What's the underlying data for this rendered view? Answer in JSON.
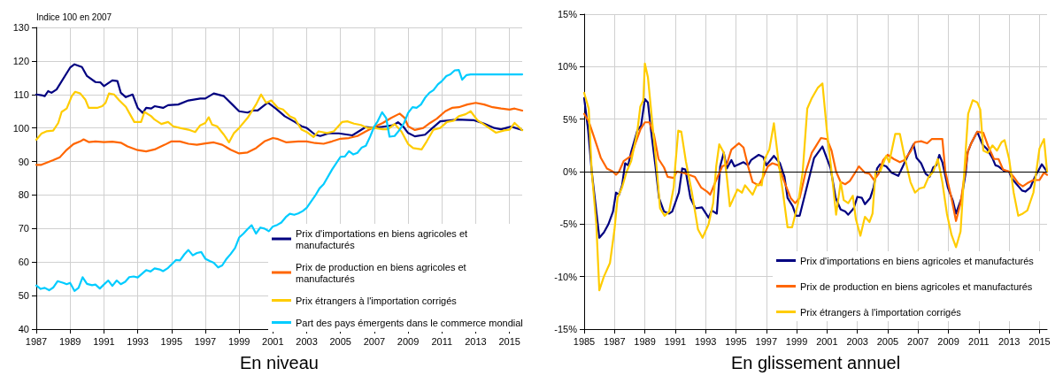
{
  "chart_data": [
    {
      "type": "line",
      "xlabel": "En niveau",
      "ylabel": "Indice 100 en 2007",
      "xlim": [
        1987,
        2015.75
      ],
      "xticks": [
        1987,
        1989,
        1991,
        1993,
        1995,
        1997,
        1999,
        2001,
        2003,
        2005,
        2007,
        2009,
        2011,
        2013,
        2015
      ],
      "ylim": [
        40,
        130
      ],
      "yticks": [
        40,
        50,
        60,
        70,
        80,
        90,
        100,
        110,
        120,
        130
      ],
      "grid": true,
      "legend": "bottom right",
      "marker": "none",
      "line_style": "solid",
      "series": [
        {
          "name": "Prix d'importations en biens agricoles et manufacturés",
          "color": "#000080",
          "x": [
            1987,
            1987.3,
            1987.5,
            1987.7,
            1987.9,
            1988.2,
            1989,
            1989.26,
            1989.7,
            1990,
            1990.5,
            1990.8,
            1991,
            1991.5,
            1991.8,
            1992,
            1992.3,
            1992.7,
            1993,
            1993.3,
            1993.5,
            1993.8,
            1994,
            1994.5,
            1994.8,
            1995.4,
            1996,
            1996.7,
            1997,
            1997.5,
            1998.1,
            1998.6,
            1999,
            1999.5,
            1999.8,
            2000.1,
            2000.7,
            2001.2,
            2001.7,
            2002.3,
            2002.7,
            2003,
            2003.5,
            2003.8,
            2004.3,
            2004.9,
            2005.7,
            2006.5,
            2007,
            2007.7,
            2008.1,
            2008.4,
            2008.7,
            2009,
            2009.4,
            2010,
            2010.4,
            2010.9,
            2011.9,
            2012.9,
            2013.5,
            2014.1,
            2014.5,
            2015.1,
            2015.75
          ],
          "values": [
            110,
            109.8,
            109.5,
            111,
            110.5,
            111.5,
            118,
            119,
            118.2,
            115.5,
            113.7,
            113.6,
            112.5,
            114.2,
            114,
            110.5,
            109.2,
            110,
            106,
            104.5,
            106,
            105.8,
            106.5,
            106,
            106.8,
            107,
            108.2,
            108.8,
            108.8,
            110.3,
            109.5,
            107,
            105,
            104.6,
            105.2,
            105.2,
            107.6,
            105.7,
            103.5,
            101.8,
            100.5,
            100,
            98,
            97.6,
            98.4,
            98.4,
            97.8,
            100.3,
            100,
            100.5,
            100.8,
            101.7,
            100.5,
            98.5,
            97.5,
            98,
            99.8,
            102,
            102.5,
            102.3,
            101.3,
            100,
            99.6,
            100.4,
            99.4
          ]
        },
        {
          "name": "Prix de production en biens agricoles et manufacturés",
          "color": "#ff6600",
          "x": [
            1987,
            1987.3,
            1987.6,
            1988,
            1988.4,
            1988.8,
            1989.2,
            1989.6,
            1989.8,
            1990.1,
            1990.5,
            1991,
            1991.5,
            1992,
            1992.4,
            1993,
            1993.5,
            1994,
            1994.6,
            1995,
            1995.5,
            1996,
            1996.5,
            1997,
            1997.5,
            1998,
            1998.5,
            1999,
            1999.5,
            2000,
            2000.5,
            2001,
            2001.3,
            2001.8,
            2002.5,
            2003,
            2003.5,
            2004,
            2004.5,
            2005,
            2005.5,
            2006,
            2006.5,
            2007,
            2007.5,
            2008,
            2008.5,
            2008.8,
            2009,
            2009.4,
            2009.9,
            2010.3,
            2010.7,
            2011.2,
            2011.6,
            2012,
            2012.5,
            2013,
            2013.5,
            2014,
            2014.5,
            2015,
            2015.3,
            2015.75
          ],
          "values": [
            89,
            89,
            89.6,
            90.4,
            91.3,
            93.5,
            95.2,
            96,
            96.6,
            95.8,
            96,
            95.8,
            95.9,
            95.6,
            94.5,
            93.4,
            93,
            93.6,
            95,
            96,
            96,
            95.3,
            95,
            95.4,
            95.7,
            95,
            93.5,
            92.4,
            92.7,
            94,
            96,
            97,
            96.7,
            95.7,
            96,
            96,
            95.5,
            95.3,
            96,
            96.8,
            97,
            97.6,
            99,
            100.3,
            101.5,
            103,
            104.3,
            103,
            100.5,
            99.4,
            100,
            101.5,
            102.8,
            105,
            106,
            106.2,
            107,
            107.5,
            107,
            106.2,
            105.8,
            105.5,
            105.8,
            105.2
          ]
        },
        {
          "name": "Prix étrangers à l'importation corrigés",
          "color": "#ffcc00",
          "x": [
            1987,
            1987.3,
            1987.6,
            1988,
            1988.3,
            1988.5,
            1988.8,
            1989.1,
            1989.3,
            1989.6,
            1989.9,
            1990.1,
            1990.6,
            1990.9,
            1991.1,
            1991.3,
            1991.6,
            1991.9,
            1992.3,
            1992.5,
            1992.8,
            1993.2,
            1993.4,
            1993.8,
            1994,
            1994.4,
            1994.8,
            1995.1,
            1995.5,
            1996,
            1996.4,
            1996.7,
            1997,
            1997.2,
            1997.4,
            1997.7,
            1998.1,
            1998.4,
            1998.7,
            1999,
            1999.5,
            2000,
            2000.3,
            2000.6,
            2000.9,
            2001.3,
            2001.6,
            2002,
            2002.3,
            2002.7,
            2003,
            2003.4,
            2003.7,
            2004.2,
            2004.6,
            2005.1,
            2005.4,
            2005.8,
            2006.2,
            2006.6,
            2007,
            2007.5,
            2007.8,
            2008.2,
            2008.6,
            2009,
            2009.3,
            2009.8,
            2010.1,
            2010.5,
            2010.9,
            2011.3,
            2011.7,
            2012,
            2012.4,
            2012.7,
            2013.1,
            2013.5,
            2013.9,
            2014.2,
            2014.7,
            2015,
            2015.3,
            2015.75
          ],
          "values": [
            96.5,
            98.3,
            99,
            99.2,
            101.5,
            104.8,
            105.8,
            109.5,
            110.8,
            110.3,
            108.5,
            106,
            106,
            106.5,
            107.5,
            110.3,
            110,
            108.3,
            106.3,
            104.5,
            101.8,
            101.8,
            104.8,
            103.5,
            102.5,
            101.2,
            101.8,
            100.5,
            100,
            99.5,
            98.8,
            100.8,
            101.5,
            103.2,
            101,
            100.5,
            98,
            95.7,
            98.5,
            100,
            103,
            107,
            110,
            107.5,
            108.2,
            106,
            105.5,
            103.5,
            102.8,
            99.5,
            98.8,
            97.3,
            99,
            98.5,
            99,
            101.8,
            102,
            101.3,
            100.9,
            100,
            100,
            99.6,
            99.6,
            101.2,
            99,
            95.2,
            94,
            93.6,
            96,
            99.5,
            100,
            101.8,
            102.2,
            103.5,
            104.1,
            105,
            102.3,
            101,
            99.6,
            98.6,
            99.3,
            99.5,
            101.5,
            99.3
          ]
        },
        {
          "name": "Part des pays émergents dans le commerce mondial",
          "color": "#00ccff",
          "x": [
            1987,
            1987.26,
            1987.5,
            1987.76,
            1988,
            1988.26,
            1988.6,
            1988.8,
            1989,
            1989.26,
            1989.5,
            1989.74,
            1990,
            1990.3,
            1990.5,
            1990.76,
            1991,
            1991.26,
            1991.5,
            1991.76,
            1992,
            1992.26,
            1992.5,
            1992.76,
            1993,
            1993.5,
            1993.76,
            1994,
            1994.3,
            1994.5,
            1994.76,
            1995.26,
            1995.5,
            1995.76,
            1996,
            1996.26,
            1996.5,
            1996.76,
            1997,
            1997.26,
            1997.5,
            1997.76,
            1998,
            1998.26,
            1998.5,
            1998.76,
            1999,
            1999.26,
            1999.5,
            1999.74,
            2000,
            2000.26,
            2000.5,
            2000.76,
            2001,
            2001.26,
            2001.5,
            2001.76,
            2002,
            2002.26,
            2002.5,
            2002.76,
            2003,
            2003.5,
            2003.76,
            2004,
            2004.5,
            2005,
            2005.26,
            2005.5,
            2005.76,
            2006,
            2006.26,
            2006.5,
            2006.76,
            2007,
            2007.2,
            2007.46,
            2007.7,
            2007.9,
            2008.2,
            2008.5,
            2008.76,
            2009,
            2009.26,
            2009.5,
            2009.76,
            2010,
            2010.26,
            2010.5,
            2010.76,
            2011,
            2011.26,
            2011.5,
            2011.76,
            2012,
            2012.2,
            2012.46,
            2012.7,
            2015.75
          ],
          "values": [
            53,
            52,
            52.3,
            51.6,
            52.4,
            54.3,
            53.8,
            53.4,
            53.8,
            51.4,
            52.3,
            55.5,
            53.5,
            53.1,
            53.3,
            52.1,
            53.3,
            54.5,
            52.9,
            54.5,
            53.4,
            54.1,
            55.5,
            55.7,
            55.4,
            57.6,
            57.2,
            58.1,
            57.8,
            57.3,
            58.1,
            60.6,
            60.5,
            62.3,
            63.6,
            62,
            62.7,
            63,
            61,
            60.3,
            59.8,
            58.4,
            59,
            61,
            62.4,
            64.2,
            67.3,
            68.5,
            69.8,
            71,
            68.5,
            70.3,
            70,
            69.2,
            70.6,
            71.1,
            71.8,
            73.4,
            74.4,
            74.1,
            74.5,
            75.2,
            76.2,
            79.8,
            82,
            83.2,
            87.6,
            91.4,
            91.5,
            93.1,
            92.1,
            92.6,
            94.2,
            94.7,
            97.5,
            100.5,
            102,
            104.7,
            103,
            97.4,
            97.6,
            99.5,
            101.5,
            104.5,
            106.2,
            106,
            107,
            109,
            110.5,
            111.3,
            113,
            114,
            115.5,
            116,
            117.2,
            117.3,
            114.4,
            115.8,
            116,
            116
          ]
        }
      ]
    },
    {
      "type": "line",
      "xlabel": "En glissement annuel",
      "xlim": [
        1985,
        2015.5
      ],
      "xticks": [
        1985,
        1987,
        1989,
        1991,
        1993,
        1995,
        1997,
        1999,
        2001,
        2003,
        2005,
        2007,
        2009,
        2011,
        2013,
        2015
      ],
      "ylim": [
        -15,
        15
      ],
      "yticks": [
        {
          "value": -15,
          "label": "-15%"
        },
        {
          "value": -10,
          "label": "-10%"
        },
        {
          "value": -5,
          "label": "-5%"
        },
        {
          "value": 0,
          "label": "0%"
        },
        {
          "value": 5,
          "label": "5%"
        },
        {
          "value": 10,
          "label": "10%"
        },
        {
          "value": 15,
          "label": "15%"
        }
      ],
      "grid": true,
      "legend": "bottom right",
      "marker": "none",
      "line_style": "solid",
      "ref_lines": [
        {
          "axis": "y",
          "value": 0,
          "color": "#000000"
        }
      ],
      "series": [
        {
          "name": "Prix d'importations en biens agricoles et manufacturés",
          "color": "#000080",
          "x": [
            1985,
            1985.26,
            1985.5,
            1986,
            1986.3,
            1986.6,
            1986.9,
            1987.1,
            1987.3,
            1987.5,
            1987.7,
            1987.9,
            1988.1,
            1988.5,
            1988.75,
            1989,
            1989.2,
            1989.4,
            1989.7,
            1989.93,
            1990.26,
            1990.6,
            1990.8,
            1991.24,
            1991.46,
            1991.67,
            1992,
            1992.33,
            1992.76,
            1993.2,
            1993.4,
            1993.74,
            1993.96,
            1994.2,
            1994.4,
            1994.7,
            1994.9,
            1995.5,
            1995.8,
            1996,
            1996.5,
            1996.8,
            1997,
            1997.5,
            1997.9,
            1998.2,
            1998.4,
            1998.74,
            1998.96,
            1999.2,
            1999.7,
            2000.15,
            2000.7,
            2001.24,
            2001.57,
            2001.9,
            2002.2,
            2002.4,
            2002.76,
            2003,
            2003.3,
            2003.5,
            2003.85,
            2004.07,
            2004.3,
            2004.5,
            2004.9,
            2005.26,
            2005.7,
            2006,
            2006.35,
            2006.7,
            2006.9,
            2007.2,
            2007.5,
            2007.76,
            2008,
            2008.2,
            2008.4,
            2008.6,
            2008.96,
            2009.3,
            2009.5,
            2009.87,
            2010.15,
            2010.26,
            2010.5,
            2010.9,
            2011.24,
            2011.57,
            2011.9,
            2012.1,
            2012.3,
            2012.65,
            2013,
            2013.2,
            2013.5,
            2013.85,
            2014.07,
            2014.4,
            2014.7,
            2015.15,
            2015.5
          ],
          "values": [
            7,
            4,
            0,
            -6.3,
            -5.8,
            -5,
            -3.8,
            -2,
            -2.2,
            -1.3,
            0.8,
            0.6,
            1.9,
            3.9,
            4.4,
            6.9,
            6.6,
            4,
            0.5,
            -2.5,
            -3.8,
            -4,
            -3.8,
            -2,
            0.3,
            0.2,
            -2.5,
            -3.5,
            -3.4,
            -4.4,
            -3.7,
            -4,
            0.5,
            1.8,
            0.3,
            1.1,
            0.5,
            0.9,
            0.6,
            1.1,
            1.6,
            1.4,
            0.6,
            1.5,
            0.8,
            -0.5,
            -2.5,
            -3.3,
            -4.2,
            -4.2,
            -1.3,
            1.3,
            2.4,
            0.3,
            -2.5,
            -3.6,
            -3.8,
            -4.1,
            -3.5,
            -2.4,
            -2.5,
            -3.1,
            -2.5,
            -1.5,
            0.3,
            0.7,
            0.5,
            -0.1,
            -0.4,
            0.5,
            1.6,
            2.6,
            1.3,
            0.8,
            -0.2,
            -0.5,
            0.4,
            0.6,
            1.6,
            0.9,
            -1.5,
            -2.8,
            -4,
            -2.5,
            0,
            1.8,
            2.7,
            3.8,
            2.6,
            2.1,
            1.3,
            0.6,
            0.5,
            0.1,
            0,
            -0.7,
            -1.2,
            -1.8,
            -1.9,
            -1.5,
            -0.5,
            0.7,
            0
          ]
        },
        {
          "name": "Prix de production en biens agricoles et manufacturés",
          "color": "#ff6600",
          "x": [
            1985,
            1985.3,
            1985.6,
            1985.9,
            1986.1,
            1986.5,
            1986.9,
            1987.1,
            1987.3,
            1987.6,
            1988.1,
            1988.4,
            1988.7,
            1989,
            1989.3,
            1989.6,
            1989.9,
            1990.26,
            1990.5,
            1990.9,
            1991.1,
            1991.5,
            1991.9,
            1992.3,
            1992.7,
            1993.1,
            1993.3,
            1993.7,
            1994.1,
            1994.4,
            1994.7,
            1995.2,
            1995.5,
            1995.8,
            1996.1,
            1996.5,
            1996.8,
            1997.1,
            1997.4,
            1997.8,
            1998.2,
            1998.6,
            1998.9,
            1999.2,
            1999.6,
            2000,
            2000.3,
            2000.6,
            2001,
            2001.3,
            2001.6,
            2001.9,
            2002.2,
            2002.5,
            2002.9,
            2003.1,
            2003.5,
            2003.8,
            2004.1,
            2004.4,
            2004.7,
            2005,
            2005.4,
            2005.8,
            2006.1,
            2006.5,
            2006.8,
            2007.2,
            2007.6,
            2007.9,
            2008.3,
            2008.6,
            2008.8,
            2009.2,
            2009.5,
            2009.8,
            2010.1,
            2010.3,
            2010.6,
            2010.9,
            2011.3,
            2011.6,
            2012,
            2012.3,
            2012.6,
            2013,
            2013.3,
            2013.6,
            2013.9,
            2014.2,
            2014.6,
            2015,
            2015.3,
            2015.5
          ],
          "values": [
            5.5,
            4.8,
            3.5,
            2.2,
            1.3,
            0.3,
            0,
            -0.3,
            0,
            1,
            1.5,
            2.8,
            4,
            4.7,
            4.7,
            3.5,
            1.2,
            0.4,
            -0.5,
            -0.6,
            0,
            -0.1,
            -0.3,
            -0.5,
            -1.5,
            -1.9,
            -2.2,
            -0.8,
            0.5,
            0.7,
            2.1,
            2.7,
            2.3,
            0.5,
            -1,
            -1.3,
            -0.5,
            0.5,
            0.8,
            0.6,
            -1,
            -2.5,
            -3,
            -2.5,
            0,
            1.8,
            2.5,
            3.2,
            3.1,
            2,
            0,
            -1,
            -1.2,
            -0.9,
            0,
            0.5,
            -0.1,
            -0.2,
            -0.8,
            -0.2,
            1.1,
            1.6,
            1.2,
            0.9,
            1.1,
            1.9,
            2.8,
            2.9,
            2.7,
            3.1,
            3.1,
            3.1,
            0,
            -2.5,
            -4.7,
            -3,
            0,
            2,
            3,
            3.8,
            3.7,
            2.5,
            1.2,
            1.2,
            0.2,
            0,
            -0.5,
            -1.1,
            -1.4,
            -1.1,
            -0.8,
            -0.8,
            -0.1,
            -0.3
          ]
        },
        {
          "name": "Prix étrangers à l'importation corrigés",
          "color": "#ffcc00",
          "x": [
            1985,
            1985.3,
            1985.5,
            1985.8,
            1986,
            1986.3,
            1986.7,
            1987,
            1987.2,
            1987.5,
            1987.8,
            1988.1,
            1988.5,
            1988.7,
            1988.9,
            1989,
            1989.2,
            1989.5,
            1989.8,
            1990,
            1990.3,
            1990.6,
            1990.9,
            1991,
            1991.2,
            1991.4,
            1991.7,
            1992.1,
            1992.5,
            1992.8,
            1993.2,
            1993.5,
            1993.7,
            1993.9,
            1994.2,
            1994.4,
            1994.6,
            1995.1,
            1995.4,
            1995.6,
            1996.1,
            1996.4,
            1996.7,
            1996.9,
            1997.2,
            1997.5,
            1997.8,
            1998.1,
            1998.4,
            1998.7,
            1999.1,
            1999.4,
            1999.7,
            2000,
            2000.4,
            2000.7,
            2001,
            2001.3,
            2001.6,
            2001.9,
            2002.1,
            2002.4,
            2002.7,
            2002.9,
            2003.2,
            2003.5,
            2003.8,
            2004,
            2004.2,
            2004.5,
            2004.9,
            2005.1,
            2005.5,
            2005.8,
            2006.1,
            2006.5,
            2006.8,
            2007.1,
            2007.4,
            2007.7,
            2008,
            2008.3,
            2008.6,
            2008.9,
            2009.2,
            2009.5,
            2009.8,
            2010,
            2010.3,
            2010.6,
            2010.9,
            2011.1,
            2011.3,
            2011.6,
            2011.9,
            2012.2,
            2012.5,
            2012.7,
            2013,
            2013.3,
            2013.6,
            2013.9,
            2014.2,
            2014.6,
            2015,
            2015.3,
            2015.5
          ],
          "values": [
            7.5,
            6,
            0,
            -5,
            -11.3,
            -10,
            -8.7,
            -5.5,
            -2.5,
            -1.5,
            0,
            1,
            3.8,
            6.2,
            6.8,
            10.3,
            9,
            4.5,
            0,
            -3.5,
            -4.2,
            -3.8,
            -1.5,
            0.5,
            3.9,
            3.8,
            1,
            -2,
            -5.5,
            -6.3,
            -5,
            -3,
            0.5,
            2.6,
            1.8,
            -0.5,
            -3.3,
            -1.7,
            -2,
            -1.3,
            -2.2,
            -1.2,
            -1.3,
            1.2,
            2.1,
            4.6,
            1,
            -2,
            -5.3,
            -5.3,
            -3,
            0,
            6,
            7,
            8,
            8.4,
            3.8,
            0,
            -4.1,
            -1,
            -2.7,
            -3,
            -2.3,
            -4.5,
            -6.1,
            -4.3,
            -4.8,
            -4,
            0,
            0,
            1.5,
            0.9,
            3.6,
            3.6,
            1.5,
            -1,
            -2,
            -1.6,
            -1.5,
            -0.5,
            0,
            1.2,
            -1,
            -4,
            -6,
            -7.2,
            -5.7,
            -1,
            5.5,
            6.8,
            6.6,
            5.9,
            2,
            1.8,
            2.5,
            2,
            2.8,
            3,
            1.2,
            -2,
            -4.2,
            -4,
            -3.7,
            -2,
            2.2,
            3.1,
            0
          ]
        }
      ]
    }
  ]
}
